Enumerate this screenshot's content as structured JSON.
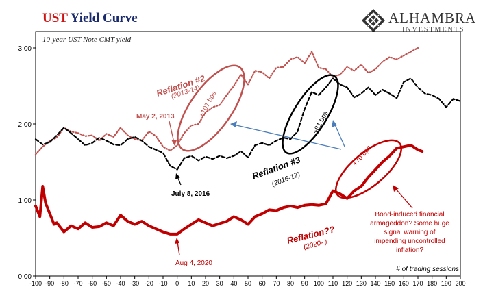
{
  "header": {
    "title_part1": "UST",
    "title_part2": "Yield Curve",
    "subtitle": "10-year UST Note CMT yield",
    "logo_name": "ALHAMBRA",
    "logo_sub": "INVESTMENTS"
  },
  "chart_data": {
    "type": "line",
    "title": "UST Yield Curve",
    "subtitle": "10-year UST Note CMT yield",
    "xlabel": "# of trading sessions",
    "ylabel": "",
    "xlim": [
      -100,
      200
    ],
    "ylim": [
      0,
      3.0
    ],
    "x_ticks": [
      -100,
      -90,
      -80,
      -70,
      -60,
      -50,
      -40,
      -30,
      -20,
      -10,
      0,
      10,
      20,
      30,
      40,
      50,
      60,
      70,
      80,
      90,
      100,
      110,
      120,
      130,
      140,
      150,
      160,
      170,
      180,
      190,
      200
    ],
    "y_ticks": [
      0.0,
      1.0,
      2.0,
      3.0
    ],
    "y_tick_labels": [
      "0.00",
      "1.00",
      "2.00",
      "3.00"
    ],
    "grid": false,
    "series": [
      {
        "name": "Reflation #2 (2013-14)",
        "color": "#c0504d",
        "style": "dotted",
        "x": [
          -100,
          -95,
          -90,
          -85,
          -80,
          -75,
          -70,
          -65,
          -60,
          -55,
          -50,
          -45,
          -40,
          -35,
          -30,
          -25,
          -20,
          -15,
          -10,
          -5,
          0,
          5,
          10,
          15,
          20,
          25,
          30,
          35,
          40,
          45,
          50,
          55,
          60,
          65,
          70,
          75,
          80,
          85,
          90,
          95,
          100,
          105,
          110,
          115,
          120,
          125,
          130,
          135,
          140,
          145,
          150,
          155,
          160,
          165,
          170
        ],
        "values": [
          1.6,
          1.7,
          1.78,
          1.82,
          1.95,
          1.9,
          1.88,
          1.84,
          1.85,
          1.78,
          1.87,
          1.83,
          1.95,
          1.85,
          1.8,
          1.78,
          1.9,
          1.84,
          1.7,
          1.65,
          1.72,
          1.88,
          1.98,
          2.0,
          2.15,
          2.22,
          2.25,
          2.38,
          2.5,
          2.65,
          2.52,
          2.7,
          2.68,
          2.6,
          2.74,
          2.75,
          2.85,
          2.88,
          2.8,
          2.95,
          2.74,
          2.72,
          2.62,
          2.65,
          2.75,
          2.7,
          2.78,
          2.67,
          2.72,
          2.82,
          2.88,
          2.85,
          2.9,
          2.95,
          3.0
        ]
      },
      {
        "name": "Reflation #3 (2016-17)",
        "color": "#000000",
        "style": "dashed",
        "x": [
          -100,
          -95,
          -90,
          -85,
          -80,
          -75,
          -70,
          -65,
          -60,
          -55,
          -50,
          -45,
          -40,
          -35,
          -30,
          -25,
          -20,
          -15,
          -10,
          -5,
          0,
          5,
          10,
          15,
          20,
          25,
          30,
          35,
          40,
          45,
          50,
          55,
          60,
          65,
          70,
          75,
          80,
          85,
          90,
          95,
          100,
          105,
          110,
          115,
          120,
          125,
          130,
          135,
          140,
          145,
          150,
          155,
          160,
          165,
          170,
          175,
          180,
          185,
          190,
          195,
          200
        ],
        "values": [
          1.8,
          1.73,
          1.76,
          1.85,
          1.95,
          1.88,
          1.8,
          1.72,
          1.75,
          1.82,
          1.78,
          1.73,
          1.72,
          1.8,
          1.83,
          1.78,
          1.7,
          1.66,
          1.62,
          1.45,
          1.4,
          1.55,
          1.58,
          1.52,
          1.57,
          1.54,
          1.58,
          1.55,
          1.58,
          1.64,
          1.56,
          1.72,
          1.75,
          1.72,
          1.78,
          1.82,
          1.8,
          1.9,
          2.2,
          2.42,
          2.38,
          2.48,
          2.6,
          2.52,
          2.48,
          2.35,
          2.4,
          2.48,
          2.38,
          2.45,
          2.4,
          2.34,
          2.55,
          2.6,
          2.48,
          2.4,
          2.38,
          2.33,
          2.22,
          2.33,
          2.3
        ]
      },
      {
        "name": "Reflation?? (2020-)",
        "color": "#c00000",
        "style": "solid",
        "x": [
          -100,
          -97,
          -95,
          -93,
          -90,
          -87,
          -85,
          -80,
          -75,
          -70,
          -65,
          -60,
          -55,
          -50,
          -45,
          -40,
          -35,
          -30,
          -25,
          -20,
          -15,
          -10,
          -5,
          0,
          5,
          10,
          15,
          20,
          25,
          30,
          35,
          40,
          45,
          50,
          55,
          60,
          65,
          70,
          75,
          80,
          85,
          90,
          95,
          100,
          105,
          110,
          115,
          120,
          125,
          130,
          135,
          140,
          145,
          150,
          155,
          160,
          165,
          170,
          173
        ],
        "values": [
          0.92,
          0.78,
          1.18,
          0.96,
          0.82,
          0.68,
          0.7,
          0.58,
          0.66,
          0.62,
          0.7,
          0.64,
          0.65,
          0.7,
          0.66,
          0.8,
          0.72,
          0.68,
          0.72,
          0.66,
          0.62,
          0.58,
          0.55,
          0.55,
          0.62,
          0.68,
          0.74,
          0.7,
          0.66,
          0.69,
          0.72,
          0.78,
          0.74,
          0.68,
          0.78,
          0.82,
          0.87,
          0.86,
          0.9,
          0.92,
          0.9,
          0.93,
          0.94,
          0.93,
          0.95,
          1.12,
          1.08,
          1.02,
          1.12,
          1.18,
          1.3,
          1.4,
          1.5,
          1.58,
          1.68,
          1.7,
          1.72,
          1.66,
          1.64
        ]
      }
    ],
    "annotations": [
      {
        "text": "Reflation #2",
        "color": "#c0504d"
      },
      {
        "text": "(2013-14)",
        "color": "#c0504d"
      },
      {
        "text": "+107 bps",
        "color": "#c0504d"
      },
      {
        "text": "May 2, 2013",
        "color": "#c0504d"
      },
      {
        "text": "July 8, 2016",
        "color": "#000000"
      },
      {
        "text": "Reflation #3",
        "color": "#000000"
      },
      {
        "text": "(2016-17)",
        "color": "#000000"
      },
      {
        "text": "+81 bps",
        "color": "#000000"
      },
      {
        "text": "+70 bps",
        "color": "#c00000"
      },
      {
        "text": "Reflation??",
        "color": "#c00000"
      },
      {
        "text": "(2020- )",
        "color": "#c00000"
      },
      {
        "text": "Aug 4, 2020",
        "color": "#c00000"
      },
      {
        "text": "Bond-induced financial armageddon? Some huge signal warning of impending uncontrolled inflation?",
        "color": "#c00000"
      }
    ],
    "note_lines": [
      "Bond-induced  financial",
      "armageddon? Some huge",
      "signal warning of",
      "impending uncontrolled",
      "inflation?"
    ]
  }
}
